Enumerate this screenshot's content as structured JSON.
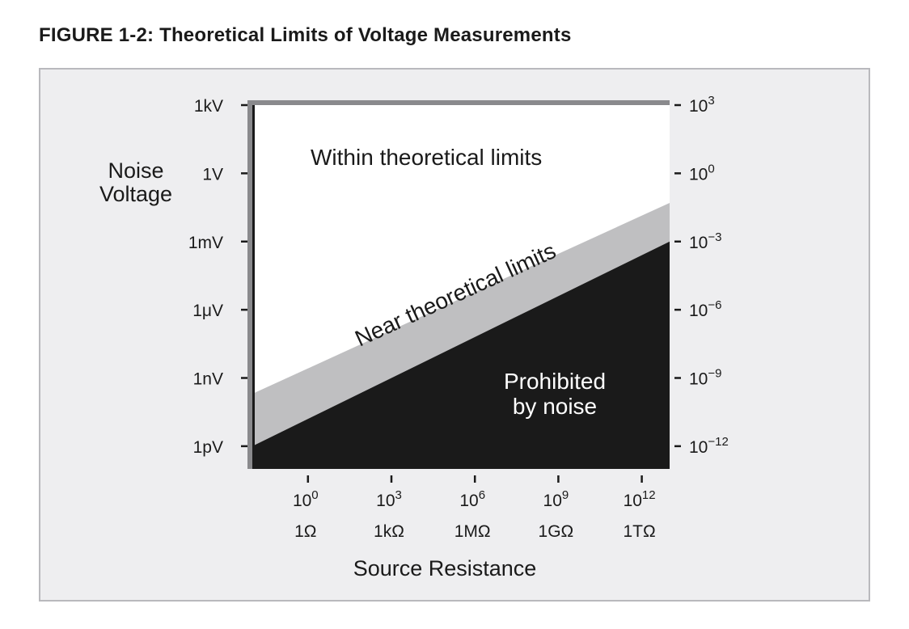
{
  "figure_title": "FIGURE 1-2: Theoretical Limits of Voltage Measurements",
  "chart_data": {
    "type": "area",
    "x_axis": {
      "label": "Source Resistance",
      "scale": "log",
      "unit": "ohm",
      "range": [
        0.01,
        10000000000000.0
      ],
      "ticks": [
        {
          "value": 1,
          "power_label": "10",
          "exponent": "0",
          "unit_label": "1Ω"
        },
        {
          "value": 1000,
          "power_label": "10",
          "exponent": "3",
          "unit_label": "1kΩ"
        },
        {
          "value": 1000000,
          "power_label": "10",
          "exponent": "6",
          "unit_label": "1MΩ"
        },
        {
          "value": 1000000000,
          "power_label": "10",
          "exponent": "9",
          "unit_label": "1GΩ"
        },
        {
          "value": 1000000000000,
          "power_label": "10",
          "exponent": "12",
          "unit_label": "1TΩ"
        }
      ]
    },
    "y_axis_left": {
      "label_lines": [
        "Noise",
        "Voltage"
      ],
      "scale": "log",
      "unit": "V",
      "range": [
        1e-13,
        1000.0
      ],
      "ticks": [
        {
          "value": 1000,
          "label": "1kV"
        },
        {
          "value": 1,
          "label": "1V"
        },
        {
          "value": 0.001,
          "label": "1mV"
        },
        {
          "value": 1e-06,
          "label": "1μV"
        },
        {
          "value": 1e-09,
          "label": "1nV"
        },
        {
          "value": 1e-12,
          "label": "1pV"
        }
      ]
    },
    "y_axis_right": {
      "ticks": [
        {
          "value": 1000,
          "base": "10",
          "exponent": "3"
        },
        {
          "value": 1,
          "base": "10",
          "exponent": "0"
        },
        {
          "value": 0.001,
          "base": "10",
          "exponent": "−3"
        },
        {
          "value": 1e-06,
          "base": "10",
          "exponent": "−6"
        },
        {
          "value": 1e-09,
          "base": "10",
          "exponent": "−9"
        },
        {
          "value": 1e-12,
          "base": "10",
          "exponent": "−12"
        }
      ]
    },
    "regions": [
      {
        "name": "Within theoretical limits",
        "label_lines": [
          "Within theoretical limits"
        ],
        "fill": "#ffffff",
        "text_color": "#1a1a1a"
      },
      {
        "name": "Near theoretical limits",
        "label_lines": [
          "Near theoretical limits"
        ],
        "fill": "#bfbfc1",
        "text_color": "#1a1a1a"
      },
      {
        "name": "Prohibited by noise",
        "label_lines": [
          "Prohibited",
          "by noise"
        ],
        "fill": "#1a1a1a",
        "text_color": "#ffffff"
      }
    ],
    "boundaries": [
      {
        "name": "upper",
        "points": [
          {
            "x": 0.01,
            "y": 2e-10
          },
          {
            "x": 10000000000000.0,
            "y": 0.05
          }
        ]
      },
      {
        "name": "lower",
        "points": [
          {
            "x": 0.01,
            "y": 1e-12
          },
          {
            "x": 10000000000000.0,
            "y": 0.001
          }
        ]
      }
    ],
    "grid": false,
    "legend": "none"
  }
}
